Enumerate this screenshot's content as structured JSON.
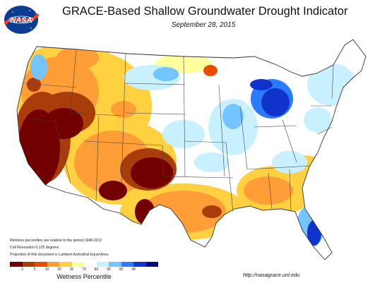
{
  "logo": {
    "text": "NASA",
    "colors": {
      "disc": "#0b3d91",
      "swoosh": "#fc3d21"
    }
  },
  "title": "GRACE-Based Shallow Groundwater Drought Indicator",
  "date": "September 28, 2015",
  "notes": [
    "Wetness percentiles are relative to the period 1948-2012",
    "Cell Resolution 0.125 degrees",
    "Projection of this document is Lambert Azimuthal Equal Area"
  ],
  "legend": {
    "title": "Wetness Percentile",
    "ticks": [
      "2",
      "5",
      "10",
      "20",
      "30",
      "70",
      "80",
      "90",
      "95",
      "98"
    ],
    "colors": [
      "#730000",
      "#a83d0a",
      "#e84c00",
      "#ff9e37",
      "#ffd040",
      "#ffff9e",
      "#ffffff",
      "#c8f0ff",
      "#73c4ff",
      "#2a7bff",
      "#1033cc",
      "#000c80"
    ]
  },
  "url": "http://nasagrace.unl.edu"
}
